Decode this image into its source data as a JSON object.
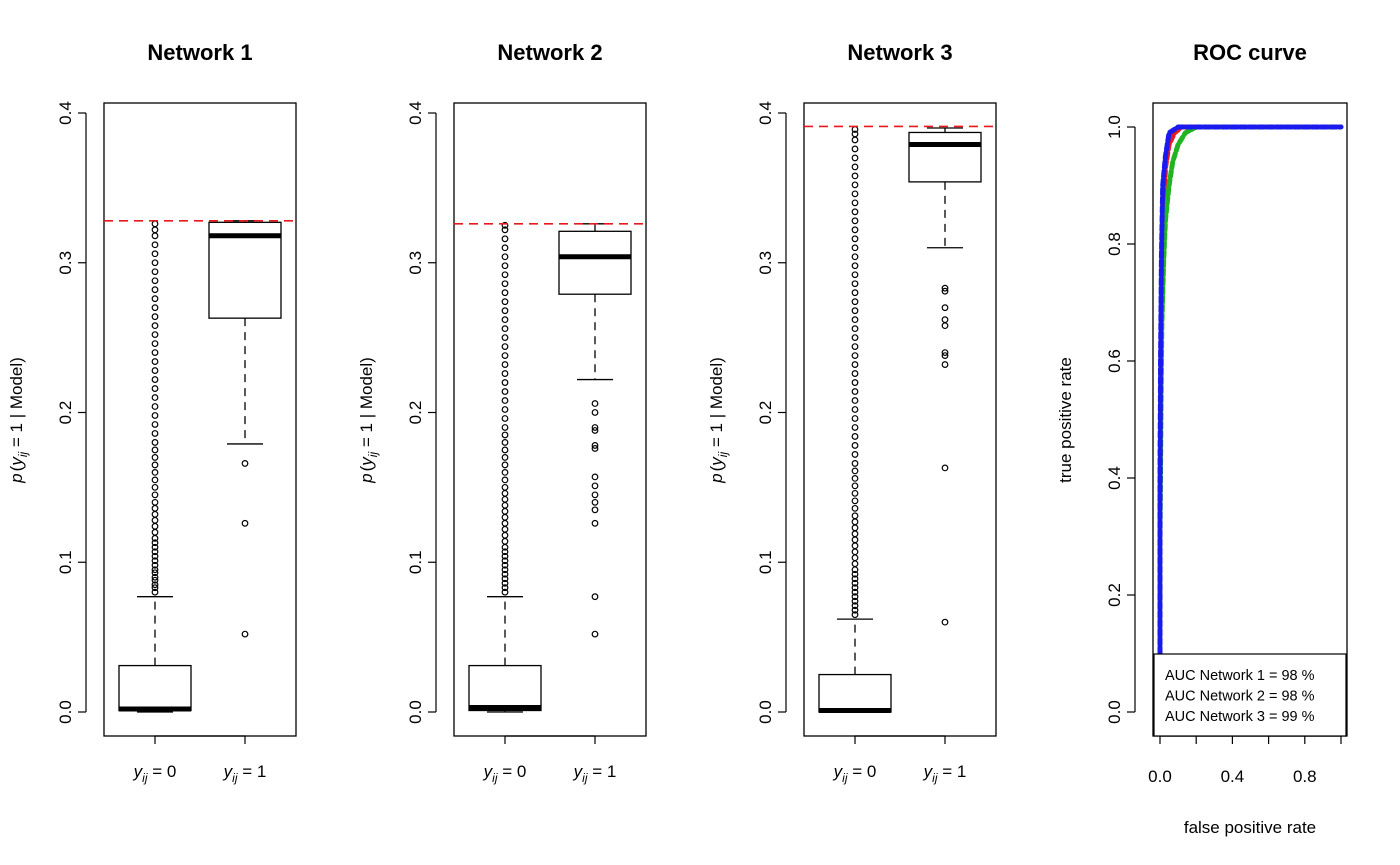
{
  "chart_data": [
    {
      "type": "box",
      "title": "Network 1",
      "ylabel": [
        "p",
        "(",
        "y",
        "ij",
        " = 1 | Model)"
      ],
      "ylim": [
        0.0,
        0.4
      ],
      "yticks": [
        "0.0",
        "0.1",
        "0.2",
        "0.3",
        "0.4"
      ],
      "categories": [
        {
          "base": "y",
          "sub": "ij",
          "rest": " = 0"
        },
        {
          "base": "y",
          "sub": "ij",
          "rest": " = 1"
        }
      ],
      "boxes": [
        {
          "min": 0.0,
          "q1": 0.001,
          "median": 0.002,
          "q3": 0.031,
          "whisker_high": 0.077,
          "outliers": [
            0.08,
            0.083,
            0.085,
            0.088,
            0.09,
            0.093,
            0.095,
            0.098,
            0.101,
            0.104,
            0.107,
            0.11,
            0.113,
            0.116,
            0.12,
            0.124,
            0.128,
            0.132,
            0.136,
            0.14,
            0.145,
            0.15,
            0.155,
            0.16,
            0.165,
            0.17,
            0.175,
            0.18,
            0.186,
            0.192,
            0.198,
            0.204,
            0.21,
            0.216,
            0.222,
            0.228,
            0.234,
            0.24,
            0.246,
            0.252,
            0.258,
            0.264,
            0.27,
            0.276,
            0.282,
            0.288,
            0.294,
            0.3,
            0.306,
            0.312,
            0.318,
            0.322,
            0.326
          ]
        },
        {
          "min": 0.179,
          "q1": 0.263,
          "median": 0.318,
          "q3": 0.327,
          "whisker_high": 0.328,
          "outliers": [
            0.166,
            0.126,
            0.052
          ]
        }
      ],
      "reference_line": 0.328
    },
    {
      "type": "box",
      "title": "Network 2",
      "ylabel": [
        "p",
        "(",
        "y",
        "ij",
        " = 1 | Model)"
      ],
      "ylim": [
        0.0,
        0.4
      ],
      "yticks": [
        "0.0",
        "0.1",
        "0.2",
        "0.3",
        "0.4"
      ],
      "categories": [
        {
          "base": "y",
          "sub": "ij",
          "rest": " = 0"
        },
        {
          "base": "y",
          "sub": "ij",
          "rest": " = 1"
        }
      ],
      "boxes": [
        {
          "min": 0.0,
          "q1": 0.001,
          "median": 0.003,
          "q3": 0.031,
          "whisker_high": 0.077,
          "outliers": [
            0.08,
            0.083,
            0.086,
            0.089,
            0.092,
            0.095,
            0.098,
            0.101,
            0.104,
            0.107,
            0.11,
            0.114,
            0.118,
            0.122,
            0.126,
            0.13,
            0.134,
            0.138,
            0.142,
            0.146,
            0.15,
            0.155,
            0.16,
            0.165,
            0.17,
            0.175,
            0.18,
            0.185,
            0.19,
            0.196,
            0.202,
            0.208,
            0.214,
            0.22,
            0.226,
            0.232,
            0.238,
            0.244,
            0.25,
            0.256,
            0.262,
            0.268,
            0.274,
            0.28,
            0.286,
            0.292,
            0.298,
            0.304,
            0.31,
            0.316,
            0.322,
            0.325
          ]
        },
        {
          "min": 0.222,
          "q1": 0.279,
          "median": 0.304,
          "q3": 0.321,
          "whisker_high": 0.326,
          "outliers": [
            0.206,
            0.2,
            0.19,
            0.188,
            0.178,
            0.176,
            0.157,
            0.151,
            0.145,
            0.14,
            0.135,
            0.126,
            0.077,
            0.052
          ]
        }
      ],
      "reference_line": 0.326
    },
    {
      "type": "box",
      "title": "Network 3",
      "ylabel": [
        "p",
        "(",
        "y",
        "ij",
        " = 1 | Model)"
      ],
      "ylim": [
        0.0,
        0.4
      ],
      "yticks": [
        "0.0",
        "0.1",
        "0.2",
        "0.3",
        "0.4"
      ],
      "categories": [
        {
          "base": "y",
          "sub": "ij",
          "rest": " = 0"
        },
        {
          "base": "y",
          "sub": "ij",
          "rest": " = 1"
        }
      ],
      "boxes": [
        {
          "min": 0.0,
          "q1": 0.0,
          "median": 0.001,
          "q3": 0.025,
          "whisker_high": 0.062,
          "outliers": [
            0.065,
            0.068,
            0.071,
            0.074,
            0.077,
            0.08,
            0.083,
            0.086,
            0.089,
            0.092,
            0.095,
            0.099,
            0.103,
            0.107,
            0.111,
            0.115,
            0.119,
            0.123,
            0.127,
            0.131,
            0.136,
            0.141,
            0.146,
            0.151,
            0.156,
            0.161,
            0.166,
            0.172,
            0.178,
            0.184,
            0.19,
            0.196,
            0.202,
            0.208,
            0.214,
            0.22,
            0.226,
            0.232,
            0.238,
            0.244,
            0.25,
            0.256,
            0.262,
            0.268,
            0.274,
            0.28,
            0.286,
            0.292,
            0.298,
            0.304,
            0.31,
            0.316,
            0.322,
            0.328,
            0.334,
            0.34,
            0.346,
            0.352,
            0.358,
            0.364,
            0.37,
            0.376,
            0.382,
            0.386,
            0.389
          ]
        },
        {
          "min": 0.31,
          "q1": 0.354,
          "median": 0.379,
          "q3": 0.387,
          "whisker_high": 0.39,
          "outliers": [
            0.283,
            0.281,
            0.27,
            0.262,
            0.258,
            0.24,
            0.238,
            0.232,
            0.163,
            0.06
          ]
        }
      ],
      "reference_line": 0.391
    },
    {
      "type": "line",
      "title": "ROC curve",
      "xlabel": "false positive rate",
      "ylabel": "true positive rate",
      "xlim": [
        0.0,
        1.0
      ],
      "ylim": [
        0.0,
        1.0
      ],
      "xticks": [
        "0.0",
        "0.4",
        "0.8"
      ],
      "yticks": [
        "0.0",
        "0.2",
        "0.4",
        "0.6",
        "0.8",
        "1.0"
      ],
      "series": [
        {
          "color": "#e8191c",
          "x": [
            0.0,
            0.0,
            0.005,
            0.01,
            0.02,
            0.03,
            0.05,
            0.08,
            0.12,
            0.2,
            0.4,
            0.6,
            0.8,
            1.0
          ],
          "y": [
            0.1,
            0.4,
            0.62,
            0.75,
            0.85,
            0.93,
            0.97,
            0.99,
            1.0,
            1.0,
            1.0,
            1.0,
            1.0,
            1.0
          ]
        },
        {
          "color": "#22b322",
          "x": [
            0.0,
            0.0,
            0.005,
            0.01,
            0.02,
            0.03,
            0.05,
            0.07,
            0.1,
            0.14,
            0.2,
            0.4,
            0.6,
            0.8,
            1.0
          ],
          "y": [
            0.1,
            0.3,
            0.5,
            0.66,
            0.77,
            0.84,
            0.9,
            0.94,
            0.97,
            0.99,
            1.0,
            1.0,
            1.0,
            1.0,
            1.0
          ]
        },
        {
          "color": "#1a1aee",
          "x": [
            0.0,
            0.0,
            0.003,
            0.008,
            0.015,
            0.03,
            0.05,
            0.1,
            0.2,
            0.4,
            0.6,
            0.8,
            1.0
          ],
          "y": [
            0.1,
            0.35,
            0.6,
            0.78,
            0.9,
            0.95,
            0.99,
            1.0,
            1.0,
            1.0,
            1.0,
            1.0,
            1.0
          ]
        }
      ],
      "legend": {
        "placement": "bottom-right",
        "entries": [
          "AUC Network 1 = 98 %",
          "AUC Network 2 = 98 %",
          "AUC Network 3 = 99 %"
        ]
      }
    }
  ]
}
